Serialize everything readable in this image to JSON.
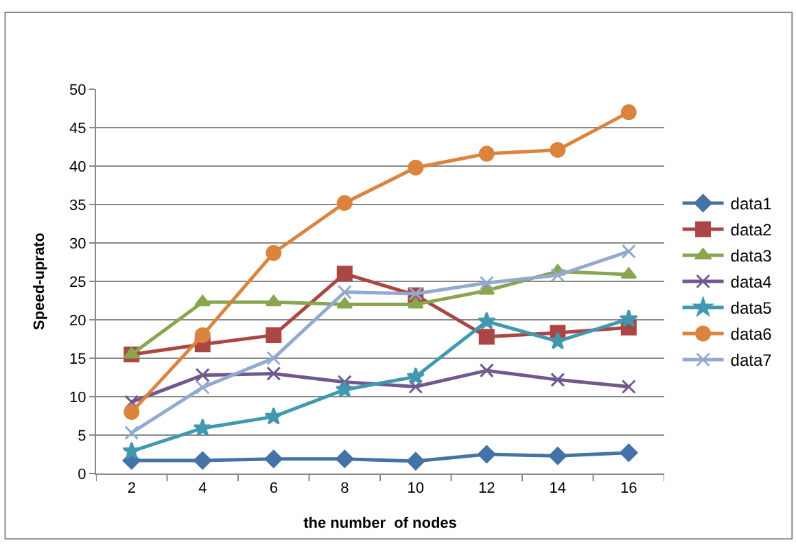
{
  "chart_data": {
    "type": "line",
    "xlabel": "the number  of nodes",
    "ylabel": "Speed-uprato",
    "categories": [
      "2",
      "4",
      "6",
      "8",
      "10",
      "12",
      "14",
      "16"
    ],
    "ylim": [
      0,
      50
    ],
    "yticks": [
      0,
      5,
      10,
      15,
      20,
      25,
      30,
      35,
      40,
      45,
      50
    ],
    "grid": "y",
    "legend": "right",
    "line_style": "solid",
    "series": [
      {
        "name": "data1",
        "color": "#4572a7",
        "marker": "diamond",
        "values": [
          1.7,
          1.7,
          1.9,
          1.9,
          1.6,
          2.5,
          2.3,
          2.7
        ]
      },
      {
        "name": "data2",
        "color": "#aa4643",
        "marker": "square",
        "values": [
          15.5,
          16.8,
          18,
          26,
          23.2,
          17.8,
          18.3,
          19
        ]
      },
      {
        "name": "data3",
        "color": "#89a54e",
        "marker": "triangle",
        "values": [
          15.5,
          22.3,
          22.3,
          22,
          22,
          23.8,
          26.3,
          25.9
        ]
      },
      {
        "name": "data4",
        "color": "#71588f",
        "marker": "cross",
        "values": [
          9.3,
          12.8,
          13,
          11.9,
          11.3,
          13.4,
          12.2,
          11.3
        ]
      },
      {
        "name": "data5",
        "color": "#4198af",
        "marker": "star",
        "values": [
          2.9,
          5.9,
          7.4,
          10.9,
          12.6,
          19.8,
          17.2,
          20.1
        ]
      },
      {
        "name": "data6",
        "color": "#db843d",
        "marker": "circle",
        "values": [
          8,
          18,
          28.7,
          35.2,
          39.8,
          41.6,
          42.1,
          47
        ]
      },
      {
        "name": "data7",
        "color": "#93a9cf",
        "marker": "cross",
        "values": [
          5.3,
          11.2,
          15,
          23.6,
          23.4,
          24.8,
          25.8,
          28.9
        ]
      }
    ]
  }
}
